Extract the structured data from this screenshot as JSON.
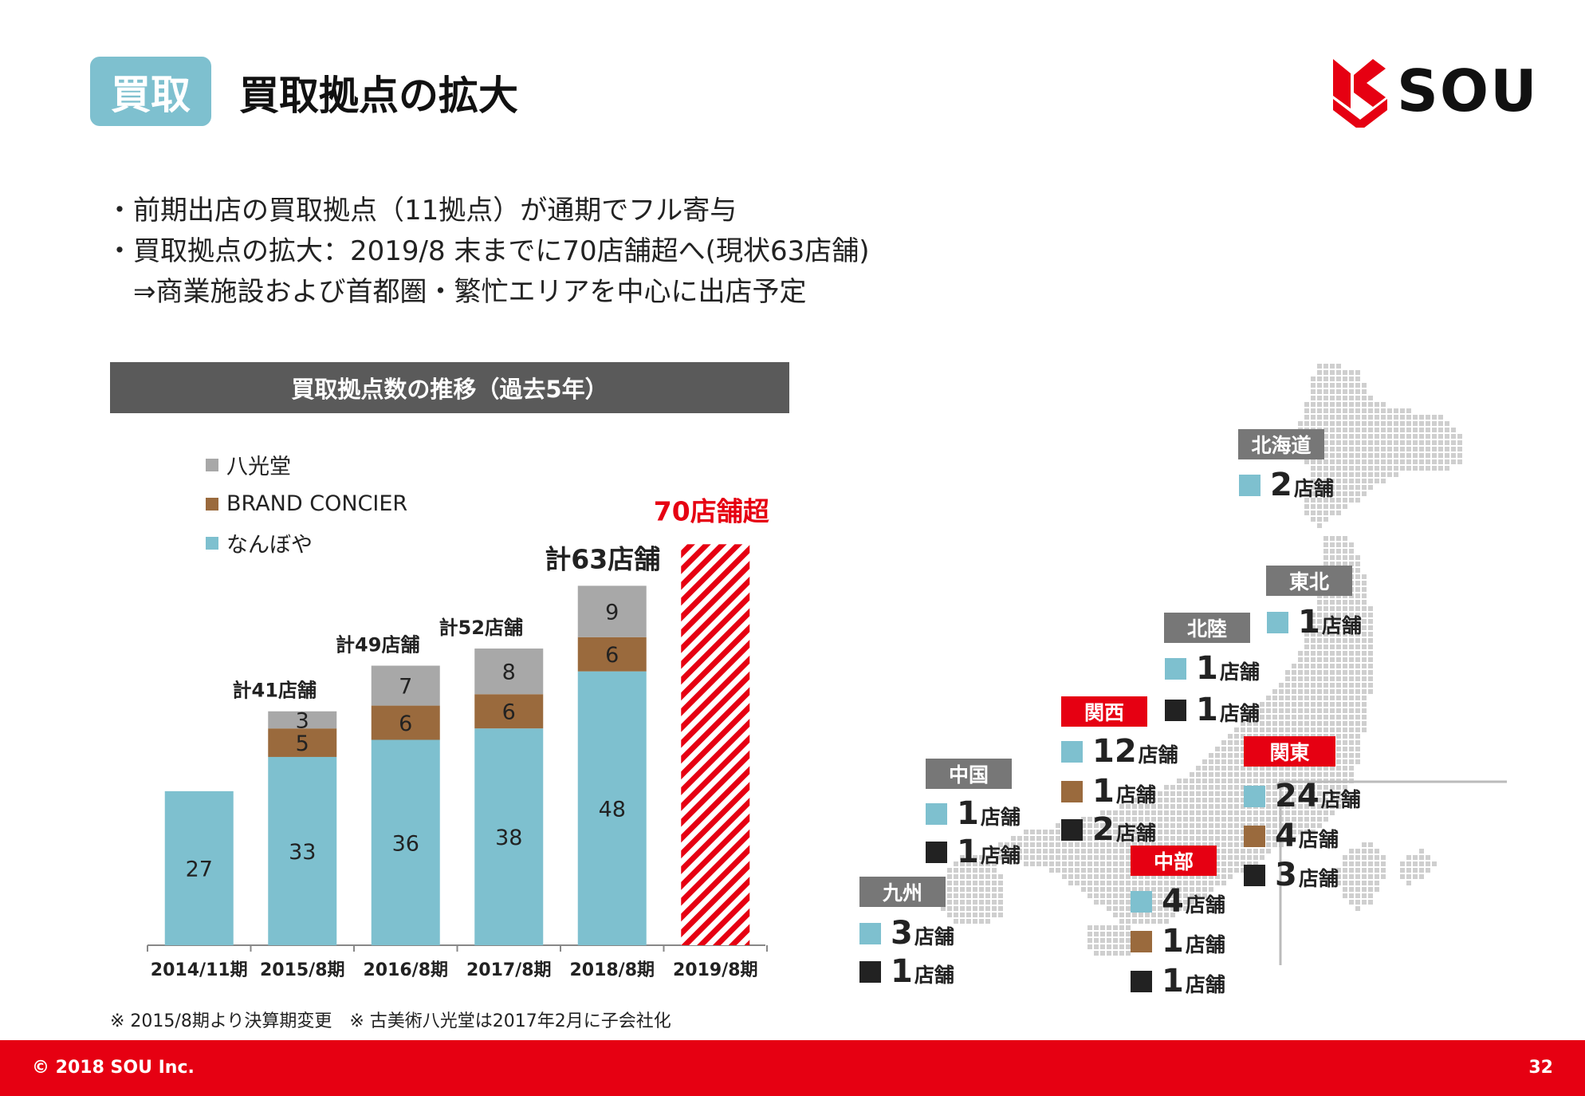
{
  "header": {
    "tag": "買取",
    "title": "買取拠点の拡大",
    "logo_text": "SOU"
  },
  "bullets": [
    "・前期出店の買取拠点（11拠点）が通期でフル寄与",
    "・買取拠点の拡大：2019/8 末までに70店舗超へ(現状63店舗)",
    "　⇒商業施設および首都圏・繁忙エリアを中心に出店予定"
  ],
  "chart_data": {
    "type": "bar",
    "stacked": true,
    "title": "買取拠点数の推移（過去5年）",
    "categories": [
      "2014/11期",
      "2015/8期",
      "2016/8期",
      "2017/8期",
      "2018/8期",
      "2019/8期"
    ],
    "series": [
      {
        "name": "なんぼや",
        "color": "#7ec0cf",
        "values": [
          27,
          33,
          36,
          38,
          48,
          null
        ]
      },
      {
        "name": "BRAND CONCIER",
        "color": "#9a6a3d",
        "values": [
          0,
          5,
          6,
          6,
          6,
          null
        ]
      },
      {
        "name": "八光堂",
        "color": "#a8a8a8",
        "values": [
          0,
          3,
          7,
          8,
          9,
          null
        ]
      }
    ],
    "totals": [
      "",
      "計41店舗",
      "計49店舗",
      "計52店舗",
      "計63店舗",
      "70店舗超"
    ],
    "forecast": {
      "category": "2019/8期",
      "value": 70,
      "color": "#e60012",
      "pattern": "hatched"
    },
    "ylim": [
      0,
      72
    ],
    "xlabel": "",
    "ylabel": "",
    "grid": false,
    "legend_position": "top-left",
    "legend_order": [
      "八光堂",
      "BRAND CONCIER",
      "なんぼや"
    ]
  },
  "map": {
    "colors": {
      "nanboya": "#7ec0cf",
      "brand": "#9a6a3d",
      "hakkodo": "#222222",
      "region_gray": "#777777",
      "region_red": "#e60012"
    },
    "regions": [
      {
        "name": "北海道",
        "style": "gray",
        "stores": [
          {
            "brand": "nanboya",
            "count": "2",
            "unit": "店舗"
          }
        ]
      },
      {
        "name": "東北",
        "style": "gray",
        "stores": [
          {
            "brand": "nanboya",
            "count": "1",
            "unit": "店舗"
          }
        ]
      },
      {
        "name": "北陸",
        "style": "gray",
        "stores": [
          {
            "brand": "nanboya",
            "count": "1",
            "unit": "店舗"
          },
          {
            "brand": "hakkodo",
            "count": "1",
            "unit": "店舗"
          }
        ]
      },
      {
        "name": "関西",
        "style": "red",
        "stores": [
          {
            "brand": "nanboya",
            "count": "12",
            "unit": "店舗"
          },
          {
            "brand": "brand",
            "count": "1",
            "unit": "店舗"
          },
          {
            "brand": "hakkodo",
            "count": "2",
            "unit": "店舗"
          }
        ]
      },
      {
        "name": "関東",
        "style": "red",
        "stores": [
          {
            "brand": "nanboya",
            "count": "24",
            "unit": "店舗"
          },
          {
            "brand": "brand",
            "count": "4",
            "unit": "店舗"
          },
          {
            "brand": "hakkodo",
            "count": "3",
            "unit": "店舗"
          }
        ]
      },
      {
        "name": "中国",
        "style": "gray",
        "stores": [
          {
            "brand": "nanboya",
            "count": "1",
            "unit": "店舗"
          },
          {
            "brand": "hakkodo",
            "count": "1",
            "unit": "店舗"
          }
        ]
      },
      {
        "name": "中部",
        "style": "red",
        "stores": [
          {
            "brand": "nanboya",
            "count": "4",
            "unit": "店舗"
          },
          {
            "brand": "brand",
            "count": "1",
            "unit": "店舗"
          },
          {
            "brand": "hakkodo",
            "count": "1",
            "unit": "店舗"
          }
        ]
      },
      {
        "name": "九州",
        "style": "gray",
        "stores": [
          {
            "brand": "nanboya",
            "count": "3",
            "unit": "店舗"
          },
          {
            "brand": "hakkodo",
            "count": "1",
            "unit": "店舗"
          }
        ]
      }
    ]
  },
  "note": "※ 2015/8期より決算期変更　※ 古美術八光堂は2017年2月に子会社化",
  "footer": {
    "copyright": "© 2018 SOU Inc.",
    "page": "32"
  }
}
